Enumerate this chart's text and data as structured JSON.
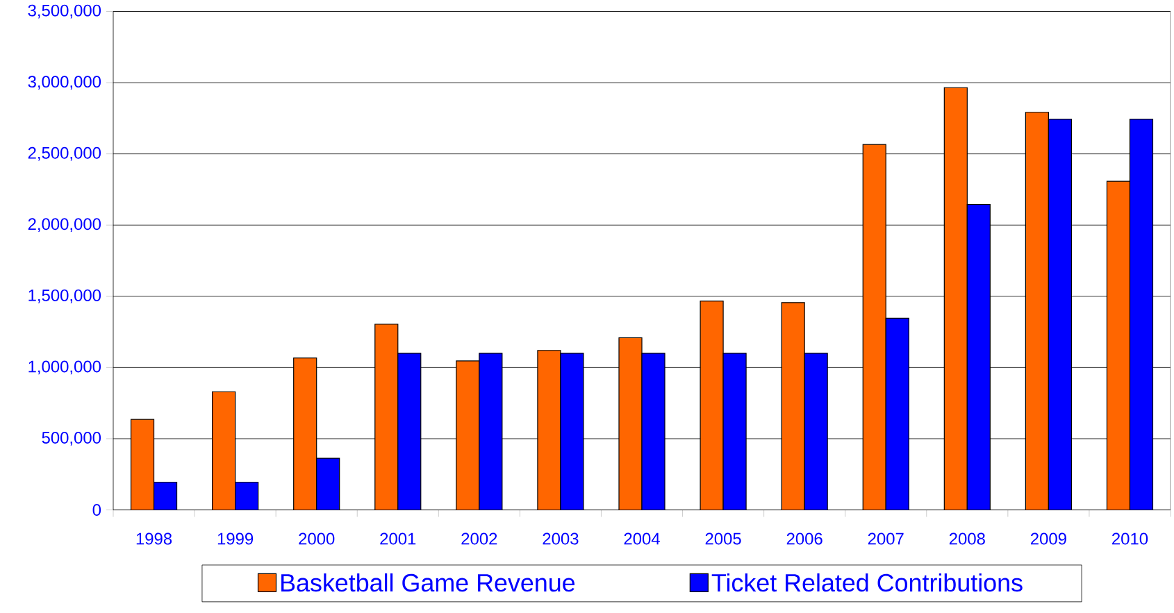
{
  "chart_data": {
    "type": "bar",
    "categories": [
      "1998",
      "1999",
      "2000",
      "2001",
      "2002",
      "2003",
      "2004",
      "2005",
      "2006",
      "2007",
      "2008",
      "2009",
      "2010"
    ],
    "series": [
      {
        "name": "Basketball Game Revenue",
        "color": "#ff6600",
        "values": [
          636000,
          830000,
          1067000,
          1304000,
          1046000,
          1120000,
          1209000,
          1467000,
          1456000,
          2566000,
          2965000,
          2792000,
          2308000
        ]
      },
      {
        "name": "Ticket Related Contributions",
        "color": "#0000ff",
        "values": [
          195000,
          195000,
          363000,
          1100000,
          1100000,
          1100000,
          1100000,
          1100000,
          1100000,
          1346000,
          2145000,
          2744000,
          2744000
        ]
      }
    ],
    "ylim": [
      0,
      3500000
    ],
    "yticks": [
      0,
      {
        "value": 500000,
        "label": "500,000"
      },
      {
        "value": 1000000,
        "label": "1,000,000"
      },
      {
        "value": 1500000,
        "label": "1,500,000"
      },
      {
        "value": 2000000,
        "label": "2,000,000"
      },
      {
        "value": 2500000,
        "label": "2,500,000"
      },
      {
        "value": 3000000,
        "label": "3,000,000"
      },
      {
        "value": 3500000,
        "label": "3,500,000"
      }
    ],
    "grid": "y",
    "legend": "bottom"
  }
}
